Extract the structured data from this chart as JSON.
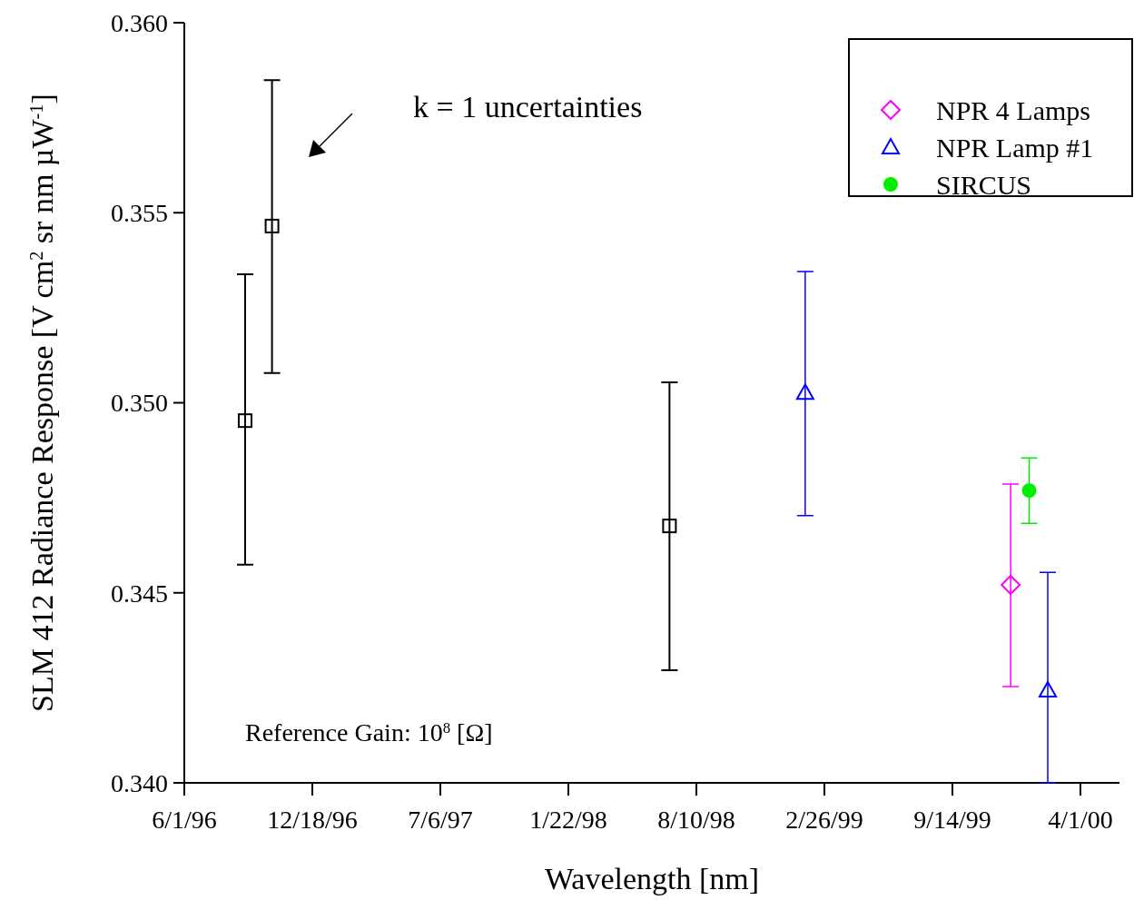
{
  "chart_data": {
    "type": "scatter",
    "xlabel": "Wavelength [nm]",
    "ylabel": "SLM 412 Radiance Response [V cm$^{2}$ sr nm µW$^{-1}$]",
    "xlim": [
      "1996-06-01",
      "2000-06-01"
    ],
    "xticks": [
      {
        "value": "1996-06-01",
        "label": "6/1/96"
      },
      {
        "value": "1996-12-18",
        "label": "12/18/96"
      },
      {
        "value": "1997-07-06",
        "label": "7/6/97"
      },
      {
        "value": "1998-01-22",
        "label": "1/22/98"
      },
      {
        "value": "1998-08-10",
        "label": "8/10/98"
      },
      {
        "value": "1999-02-26",
        "label": "2/26/99"
      },
      {
        "value": "1999-09-14",
        "label": "9/14/99"
      },
      {
        "value": "2000-04-01",
        "label": "4/1/00"
      }
    ],
    "ylim": [
      0.34,
      0.36
    ],
    "yticks": [
      {
        "value": 0.34,
        "label": "0.340"
      },
      {
        "value": 0.345,
        "label": "0.345"
      },
      {
        "value": 0.35,
        "label": "0.350"
      },
      {
        "value": 0.355,
        "label": "0.355"
      },
      {
        "value": 0.36,
        "label": "0.360"
      }
    ],
    "legend": "top right",
    "grid": false,
    "series": [
      {
        "color": "#000000",
        "marker": "square",
        "x": [
          "1996-09-04",
          "1996-10-16",
          "1998-06-29"
        ],
        "values": [
          0.34953,
          0.35465,
          0.34676
        ],
        "errors": [
          [
            0.34574,
            0.35338
          ],
          [
            0.35078,
            0.35849
          ],
          [
            0.34296,
            0.35054
          ]
        ]
      },
      {
        "name": "NPR 4 Lamps",
        "color": "#ff00ff",
        "marker": "diamond",
        "x": [
          "1999-12-14"
        ],
        "values": [
          0.34521
        ],
        "errors": [
          [
            0.34253,
            0.34786
          ]
        ]
      },
      {
        "name": "NPR Lamp #1",
        "color": "#0000ff",
        "marker": "triangle",
        "x": [
          "1999-01-27",
          "2000-02-10"
        ],
        "values": [
          0.35027,
          0.34244
        ],
        "errors": [
          [
            0.34703,
            0.35345
          ],
          [
            0.34,
            0.34554
          ]
        ]
      },
      {
        "name": "SIRCUS",
        "color": "#00ee00",
        "marker": "circle",
        "x": [
          "2000-01-12"
        ],
        "values": [
          0.34769
        ],
        "errors": [
          [
            0.34683,
            0.34855
          ]
        ]
      }
    ],
    "annotations": [
      "k = 1 uncertainties",
      "Reference Gain:  10$^{8}$ [Ω]"
    ]
  }
}
